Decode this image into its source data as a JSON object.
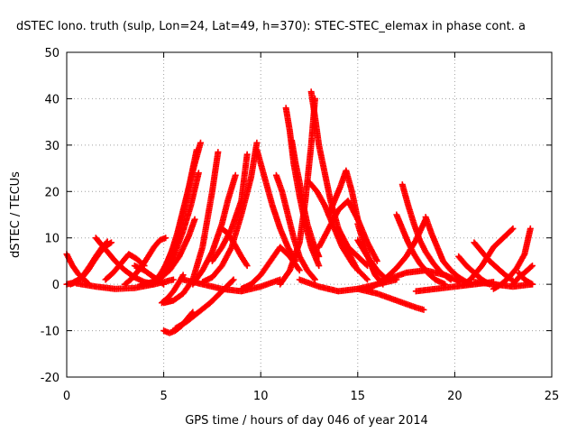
{
  "chart_data": {
    "type": "scatter",
    "title": "dSTEC Iono. truth (sulp, Lon=24, Lat=49, h=370): STEC-STEC_elemax in phase cont. a",
    "xlabel": "GPS time / hours of day 046 of year 2014",
    "ylabel": "dSTEC  / TECUs",
    "xlim": [
      0,
      25
    ],
    "ylim": [
      -20,
      50
    ],
    "xticks": [
      "0",
      "5",
      "10",
      "15",
      "20",
      "25"
    ],
    "yticks": [
      "-20",
      "-10",
      "0",
      "10",
      "20",
      "30",
      "40",
      "50"
    ],
    "grid": true,
    "marker": "plus",
    "color": "#ff0000",
    "series": [
      {
        "x": [
          0.0,
          0.3,
          0.6,
          0.9,
          1.1
        ],
        "y": [
          6.5,
          4.0,
          2.2,
          1.0,
          0.2
        ]
      },
      {
        "x": [
          0.0,
          0.3,
          0.6,
          0.9,
          1.2,
          1.5,
          1.8,
          2.1
        ],
        "y": [
          0.0,
          0.3,
          1.0,
          2.2,
          4.0,
          6.0,
          7.8,
          9.2
        ]
      },
      {
        "x": [
          0.2,
          0.5,
          0.8,
          1.1,
          1.4,
          1.7,
          2.0,
          2.3
        ],
        "y": [
          0.0,
          0.5,
          1.5,
          3.0,
          5.0,
          6.8,
          8.2,
          9.0
        ]
      },
      {
        "x": [
          1.5,
          2.0,
          2.5,
          3.0,
          3.5,
          4.0,
          4.5
        ],
        "y": [
          10.0,
          7.5,
          5.0,
          3.0,
          1.5,
          0.5,
          0.0
        ]
      },
      {
        "x": [
          2.0,
          2.4,
          2.8,
          3.2,
          3.6,
          4.0
        ],
        "y": [
          1.0,
          2.5,
          4.5,
          6.5,
          5.5,
          4.0
        ]
      },
      {
        "x": [
          0.5,
          1.5,
          2.5,
          3.5,
          4.5,
          5.5
        ],
        "y": [
          0.2,
          -0.5,
          -1.0,
          -0.8,
          0.0,
          1.0
        ]
      },
      {
        "x": [
          3.0,
          3.3,
          3.6,
          3.9,
          4.2,
          4.5,
          4.8,
          5.1
        ],
        "y": [
          0.0,
          1.0,
          2.5,
          4.0,
          6.0,
          8.0,
          9.5,
          10.0
        ]
      },
      {
        "x": [
          3.5,
          4.0,
          4.5,
          5.0
        ],
        "y": [
          4.0,
          3.0,
          1.5,
          0.0
        ]
      },
      {
        "x": [
          4.5,
          4.8,
          5.1,
          5.4,
          5.7,
          6.0,
          6.3,
          6.6,
          6.9
        ],
        "y": [
          0.5,
          2.0,
          4.0,
          7.0,
          11.0,
          16.0,
          21.0,
          26.0,
          30.5
        ]
      },
      {
        "x": [
          4.3,
          4.6,
          4.9,
          5.2,
          5.5,
          5.8,
          6.1,
          6.4,
          6.7
        ],
        "y": [
          0.0,
          1.0,
          2.5,
          5.0,
          8.0,
          12.0,
          17.0,
          23.0,
          29.0
        ]
      },
      {
        "x": [
          4.0,
          4.4,
          4.8,
          5.2,
          5.6,
          6.0,
          6.4,
          6.8
        ],
        "y": [
          0.0,
          0.5,
          1.5,
          3.5,
          7.0,
          11.5,
          17.0,
          24.0
        ]
      },
      {
        "x": [
          3.8,
          4.3,
          4.8,
          5.3,
          5.8,
          6.3,
          6.6
        ],
        "y": [
          0.0,
          0.3,
          1.2,
          3.0,
          6.0,
          10.5,
          14.0
        ]
      },
      {
        "x": [
          5.0,
          5.5,
          6.0,
          6.5,
          7.0,
          7.5,
          7.8
        ],
        "y": [
          -4.0,
          -3.5,
          -2.0,
          1.0,
          8.0,
          20.0,
          28.5
        ]
      },
      {
        "x": [
          4.9,
          5.2,
          5.5,
          5.8,
          6.0
        ],
        "y": [
          -4.0,
          -3.0,
          -1.5,
          0.5,
          2.0
        ]
      },
      {
        "x": [
          5.0,
          5.3,
          5.6,
          5.9,
          6.2,
          6.5
        ],
        "y": [
          -10.0,
          -10.5,
          -10.0,
          -9.0,
          -7.5,
          -6.0
        ]
      },
      {
        "x": [
          5.6,
          6.2,
          6.8,
          7.4,
          8.0,
          8.6
        ],
        "y": [
          -9.5,
          -8.0,
          -6.0,
          -4.0,
          -1.5,
          1.0
        ]
      },
      {
        "x": [
          6.5,
          7.0,
          7.5,
          8.0,
          8.3,
          8.7
        ],
        "y": [
          0.0,
          3.0,
          7.0,
          13.0,
          18.0,
          23.5
        ]
      },
      {
        "x": [
          7.0,
          7.5,
          8.0,
          8.5,
          9.0,
          9.5,
          9.8
        ],
        "y": [
          0.5,
          1.5,
          4.0,
          8.0,
          15.0,
          23.0,
          30.5
        ]
      },
      {
        "x": [
          7.5,
          8.0,
          8.5,
          9.0,
          9.3
        ],
        "y": [
          5.0,
          8.0,
          12.0,
          18.0,
          28.0
        ]
      },
      {
        "x": [
          8.0,
          8.3,
          8.6,
          9.0,
          9.3
        ],
        "y": [
          12.0,
          11.0,
          9.0,
          6.0,
          4.0
        ]
      },
      {
        "x": [
          6.0,
          7.0,
          8.0,
          9.0,
          10.0,
          11.0
        ],
        "y": [
          1.0,
          0.0,
          -1.0,
          -1.5,
          -0.5,
          1.0
        ]
      },
      {
        "x": [
          9.8,
          10.2,
          10.6,
          11.0,
          11.4,
          11.8
        ],
        "y": [
          29.0,
          23.0,
          17.0,
          12.0,
          8.0,
          5.0
        ]
      },
      {
        "x": [
          9.0,
          9.5,
          10.0,
          10.5,
          11.0,
          11.5,
          12.0
        ],
        "y": [
          -1.0,
          0.0,
          2.0,
          5.0,
          8.0,
          6.0,
          3.0
        ]
      },
      {
        "x": [
          11.3,
          11.5,
          11.7,
          12.0,
          12.3,
          12.6,
          13.0
        ],
        "y": [
          38.0,
          33.0,
          26.0,
          19.0,
          13.0,
          8.0,
          4.0
        ]
      },
      {
        "x": [
          10.8,
          11.1,
          11.4,
          11.7,
          12.0,
          12.4,
          12.8
        ],
        "y": [
          23.5,
          20.0,
          15.0,
          10.0,
          6.0,
          3.0,
          1.0
        ]
      },
      {
        "x": [
          11.6,
          11.8,
          12.0,
          12.2,
          12.4,
          12.7,
          13.0
        ],
        "y": [
          31.0,
          26.0,
          22.0,
          17.0,
          13.0,
          9.0,
          6.0
        ]
      },
      {
        "x": [
          12.6,
          12.8,
          13.0,
          13.3,
          13.6,
          14.0,
          14.5,
          15.0
        ],
        "y": [
          41.5,
          36.0,
          30.0,
          24.0,
          18.0,
          12.0,
          7.0,
          3.0
        ]
      },
      {
        "x": [
          11.0,
          11.5,
          12.0,
          12.3,
          12.6,
          12.8
        ],
        "y": [
          0.0,
          3.0,
          9.0,
          18.0,
          30.0,
          40.0
        ]
      },
      {
        "x": [
          12.5,
          12.9,
          13.3,
          13.7,
          14.2,
          14.8,
          15.5
        ],
        "y": [
          22.0,
          20.0,
          17.0,
          13.0,
          8.0,
          4.0,
          1.0
        ]
      },
      {
        "x": [
          13.0,
          13.5,
          14.0,
          14.5,
          15.0,
          15.5,
          16.0
        ],
        "y": [
          8.0,
          12.0,
          16.0,
          18.0,
          14.0,
          9.0,
          5.0
        ]
      },
      {
        "x": [
          13.5,
          13.8,
          14.1,
          14.4,
          14.7,
          15.0
        ],
        "y": [
          15.0,
          18.0,
          21.0,
          24.5,
          20.0,
          14.0
        ]
      },
      {
        "x": [
          14.0,
          14.5,
          15.0,
          15.5
        ],
        "y": [
          12.0,
          8.0,
          6.0,
          4.0
        ]
      },
      {
        "x": [
          15.0,
          15.3,
          15.6,
          15.9,
          16.3
        ],
        "y": [
          13.0,
          9.0,
          5.0,
          2.0,
          0.0
        ]
      },
      {
        "x": [
          12.0,
          13.0,
          14.0,
          15.0,
          16.0,
          17.0
        ],
        "y": [
          1.0,
          -0.5,
          -1.5,
          -1.0,
          0.0,
          1.0
        ]
      },
      {
        "x": [
          15.5,
          16.0,
          16.5,
          17.0,
          17.5,
          18.0,
          18.5
        ],
        "y": [
          -1.0,
          0.0,
          1.5,
          3.5,
          6.0,
          9.5,
          14.0
        ]
      },
      {
        "x": [
          15.0,
          15.5,
          16.0,
          16.5
        ],
        "y": [
          9.5,
          6.0,
          3.0,
          1.0
        ]
      },
      {
        "x": [
          17.0,
          17.3,
          17.6,
          17.9,
          18.2,
          18.6,
          19.0,
          19.5
        ],
        "y": [
          15.0,
          12.0,
          9.0,
          6.5,
          4.5,
          2.5,
          1.0,
          0.0
        ]
      },
      {
        "x": [
          17.3,
          17.6,
          17.9,
          18.2,
          18.5,
          18.9,
          19.3,
          19.8
        ],
        "y": [
          21.5,
          17.0,
          13.0,
          9.5,
          7.0,
          4.5,
          2.5,
          1.0
        ]
      },
      {
        "x": [
          15.0,
          16.0,
          17.0,
          18.0,
          18.4
        ],
        "y": [
          -1.0,
          -2.0,
          -3.5,
          -5.0,
          -5.5
        ]
      },
      {
        "x": [
          16.5,
          17.5,
          18.5,
          19.5,
          20.3
        ],
        "y": [
          1.0,
          2.5,
          3.0,
          2.0,
          0.5
        ]
      },
      {
        "x": [
          18.5,
          18.8,
          19.1,
          19.4,
          19.8,
          20.2,
          20.8
        ],
        "y": [
          14.5,
          11.0,
          8.0,
          5.0,
          3.0,
          1.5,
          0.0
        ]
      },
      {
        "x": [
          18.0,
          19.0,
          20.0,
          21.0,
          22.0
        ],
        "y": [
          -1.5,
          -1.0,
          -0.5,
          0.0,
          0.5
        ]
      },
      {
        "x": [
          20.2,
          20.6,
          21.0,
          21.4,
          21.8
        ],
        "y": [
          6.0,
          4.0,
          2.5,
          1.0,
          0.0
        ]
      },
      {
        "x": [
          20.5,
          20.8,
          21.1,
          21.4,
          21.7,
          22.0,
          22.5,
          23.0
        ],
        "y": [
          0.0,
          1.0,
          2.5,
          4.0,
          6.0,
          8.0,
          10.0,
          12.0
        ]
      },
      {
        "x": [
          21.0,
          21.4,
          21.8,
          22.2,
          22.6,
          23.0
        ],
        "y": [
          9.0,
          7.0,
          5.0,
          3.5,
          2.0,
          0.8
        ]
      },
      {
        "x": [
          22.0,
          22.4,
          22.8,
          23.2,
          23.6,
          23.9
        ],
        "y": [
          -1.0,
          0.0,
          1.5,
          3.5,
          6.5,
          12.0
        ]
      },
      {
        "x": [
          23.0,
          23.3,
          23.6,
          24.0
        ],
        "y": [
          0.0,
          1.5,
          2.5,
          4.0
        ]
      },
      {
        "x": [
          23.3,
          23.6,
          24.0
        ],
        "y": [
          2.5,
          1.0,
          0.0
        ]
      },
      {
        "x": [
          21.0,
          22.0,
          23.0,
          24.0
        ],
        "y": [
          0.5,
          0.0,
          -0.5,
          0.0
        ]
      }
    ]
  }
}
